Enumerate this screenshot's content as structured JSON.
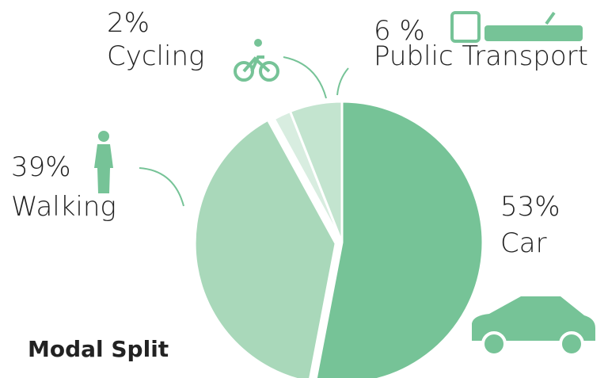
{
  "chart_data": {
    "type": "pie",
    "title": "Modal Split",
    "categories": [
      "Car",
      "Walking",
      "Cycling",
      "Public Transport"
    ],
    "values": [
      53,
      39,
      2,
      6
    ],
    "value_labels": [
      "53%",
      "39%",
      "2%",
      "6 %"
    ],
    "colors": [
      "#76c397",
      "#a9d8ba",
      "#d8ede0",
      "#c3e4cf"
    ]
  }
}
